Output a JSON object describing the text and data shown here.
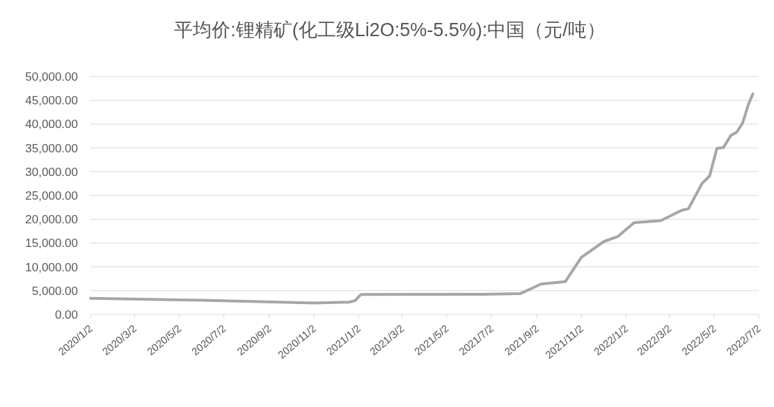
{
  "chart_data": {
    "type": "line",
    "title": "平均价:锂精矿(化工级Li2O:5%-5.5%):中国（元/吨）",
    "x": [
      "2020-01-02",
      "2020-06-01",
      "2020-11-02",
      "2020-12-20",
      "2020-12-28",
      "2021-01-05",
      "2021-06-21",
      "2021-08-11",
      "2021-09-08",
      "2021-10-11",
      "2021-11-02",
      "2021-12-03",
      "2021-12-22",
      "2022-01-13",
      "2022-02-18",
      "2022-03-19",
      "2022-03-28",
      "2022-04-16",
      "2022-04-26",
      "2022-05-06",
      "2022-05-15",
      "2022-05-25",
      "2022-06-02",
      "2022-06-10",
      "2022-06-18",
      "2022-06-24"
    ],
    "series": [
      {
        "color": "#a6a6a6",
        "values": [
          3400,
          3000,
          2400,
          2600,
          2900,
          4200,
          4250,
          4400,
          6400,
          6900,
          12000,
          15350,
          16400,
          19300,
          19700,
          21900,
          22200,
          27600,
          29100,
          34900,
          35100,
          37600,
          38300,
          40200,
          44150,
          46350
        ]
      }
    ],
    "xlim": [
      "2020-01-02",
      "2022-07-02"
    ],
    "xticks": [
      {
        "value": "2020-01-02",
        "label": "2020/1/2"
      },
      {
        "value": "2020-03-02",
        "label": "2020/3/2"
      },
      {
        "value": "2020-05-02",
        "label": "2020/5/2"
      },
      {
        "value": "2020-07-02",
        "label": "2020/7/2"
      },
      {
        "value": "2020-09-02",
        "label": "2020/9/2"
      },
      {
        "value": "2020-11-02",
        "label": "2020/11/2"
      },
      {
        "value": "2021-01-02",
        "label": "2021/1/2"
      },
      {
        "value": "2021-03-02",
        "label": "2021/3/2"
      },
      {
        "value": "2021-05-02",
        "label": "2021/5/2"
      },
      {
        "value": "2021-07-02",
        "label": "2021/7/2"
      },
      {
        "value": "2021-09-02",
        "label": "2021/9/2"
      },
      {
        "value": "2021-11-02",
        "label": "2021/11/2"
      },
      {
        "value": "2022-01-02",
        "label": "2022/1/2"
      },
      {
        "value": "2022-03-02",
        "label": "2022/3/2"
      },
      {
        "value": "2022-05-02",
        "label": "2022/5/2"
      },
      {
        "value": "2022-07-02",
        "label": "2022/7/2"
      }
    ],
    "ylim": [
      0,
      50000
    ],
    "yticks": [
      {
        "value": 0,
        "label": "0.00"
      },
      {
        "value": 5000,
        "label": "5,000.00"
      },
      {
        "value": 10000,
        "label": "10,000.00"
      },
      {
        "value": 15000,
        "label": "15,000.00"
      },
      {
        "value": 20000,
        "label": "20,000.00"
      },
      {
        "value": 25000,
        "label": "25,000.00"
      },
      {
        "value": 30000,
        "label": "30,000.00"
      },
      {
        "value": 35000,
        "label": "35,000.00"
      },
      {
        "value": 40000,
        "label": "40,000.00"
      },
      {
        "value": 45000,
        "label": "45,000.00"
      },
      {
        "value": 50000,
        "label": "50,000.00"
      }
    ],
    "grid": "y",
    "marker": "none",
    "line_style": "solid"
  }
}
